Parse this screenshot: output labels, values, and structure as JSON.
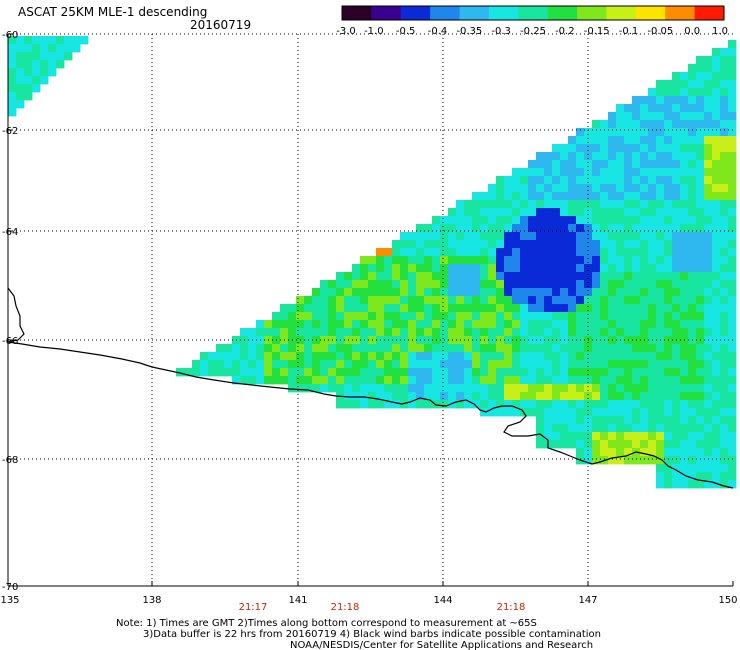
{
  "header": {
    "title": "ASCAT 25KM MLE-1 descending",
    "date": "20160719"
  },
  "colorbar": {
    "ticks": [
      "-3.0",
      "-1.0",
      "-0.5",
      "-0.4",
      "-0.35",
      "-0.3",
      "-0.25",
      "-0.2",
      "-0.15",
      "-0.1",
      "-0.05",
      "0.0",
      "1.0"
    ],
    "colors": [
      "#2a0026",
      "#3c0090",
      "#0a2ad8",
      "#1f86ec",
      "#2fb8ef",
      "#18e6e2",
      "#18e6a0",
      "#22e040",
      "#7ee81c",
      "#c8ef18",
      "#ffe400",
      "#ff8c00",
      "#ff1a00"
    ]
  },
  "axes": {
    "lat_labels": [
      "-60",
      "-62",
      "-64",
      "-66",
      "-68",
      "-70"
    ],
    "lon_labels": [
      "135",
      "138",
      "141",
      "144",
      "147",
      "150"
    ]
  },
  "times": [
    "21:17",
    "21:18",
    "21:18"
  ],
  "note": {
    "line1": "Note: 1) Times are GMT 2)Times along bottom correspond to measurement at ~65S",
    "line2": "3)Data buffer is 22 hrs from 20160719 4) Black wind barbs indicate possible contamination",
    "line3": "NOAA/NESDIS/Center for Satellite Applications and Research"
  },
  "style": {
    "grid_color": "#000000",
    "coast_color": "#000000",
    "time_color": "#cc2200"
  }
}
